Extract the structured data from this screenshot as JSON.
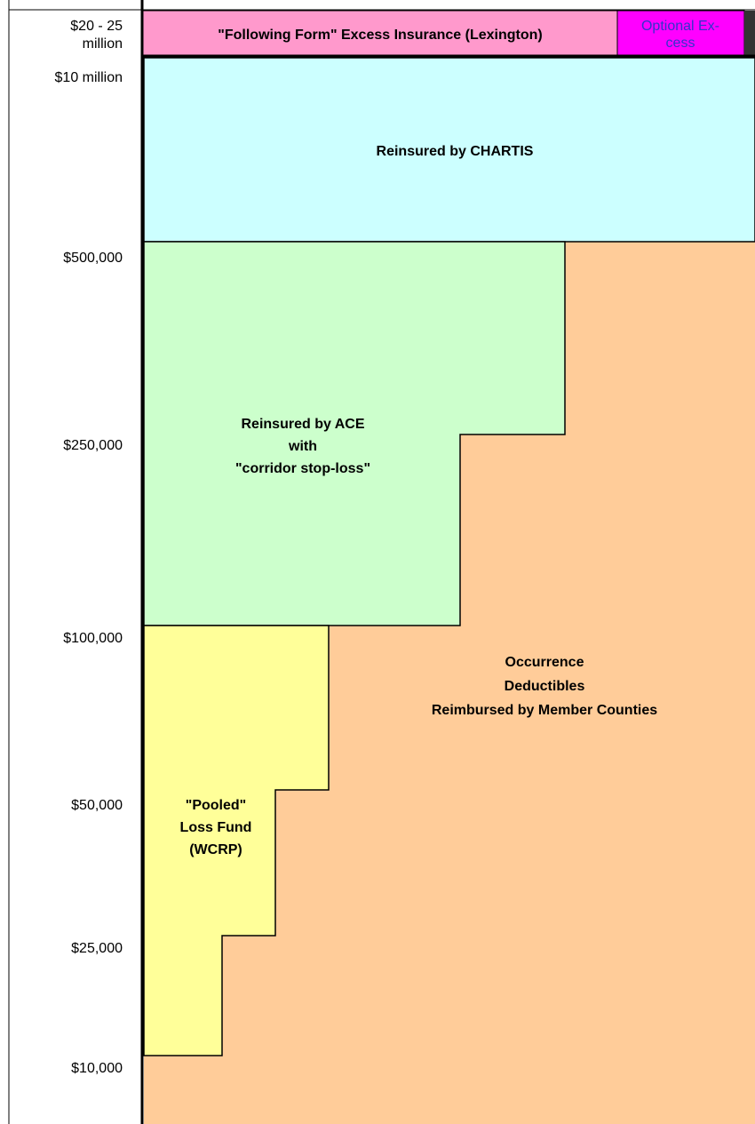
{
  "axis_labels": [
    [
      "$20 - 25",
      "million"
    ],
    [
      "$10 million"
    ],
    [
      "$500,000"
    ],
    [
      "$250,000"
    ],
    [
      "$100,000"
    ],
    [
      "$50,000"
    ],
    [
      "$25,000"
    ],
    [
      "$10,000"
    ]
  ],
  "top_layer": {
    "label": "\"Following Form\" Excess Insurance (Lexington)",
    "optional": [
      "Optional Ex-",
      "cess"
    ]
  },
  "regions": {
    "chartis": [
      "Reinsured by CHARTIS"
    ],
    "ace": [
      "Reinsured by ACE",
      "with",
      "\"corridor stop-loss\""
    ],
    "deductibles": [
      "Occurrence",
      "Deductibles",
      "Reimbursed by Member Counties"
    ],
    "pooled": [
      "\"Pooled\"",
      "Loss Fund",
      "(WCRP)"
    ]
  }
}
